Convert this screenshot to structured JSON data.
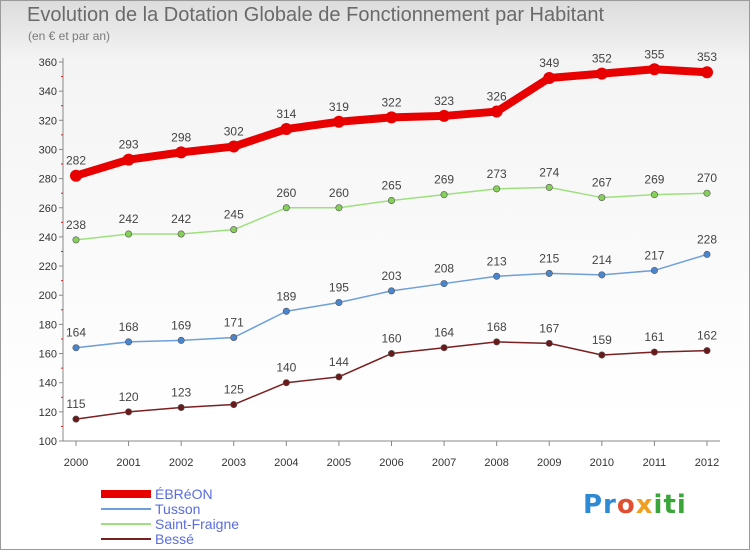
{
  "header": {
    "title": "Evolution de la Dotation Globale de Fonctionnement par Habitant",
    "subtitle": "(en € et par an)"
  },
  "logo": {
    "text": "Proxiti",
    "parts": [
      "Pr",
      "o",
      "x",
      "iti"
    ]
  },
  "chart_data": {
    "type": "line",
    "title": "Evolution de la Dotation Globale de Fonctionnement par Habitant",
    "subtitle": "(en € et par an)",
    "xlabel": "",
    "ylabel": "",
    "ylim": [
      100,
      360
    ],
    "yticks": [
      100,
      120,
      140,
      160,
      180,
      200,
      220,
      240,
      260,
      280,
      300,
      320,
      340,
      360
    ],
    "x": [
      "2000",
      "2001",
      "2002",
      "2003",
      "2004",
      "2005",
      "2006",
      "2007",
      "2008",
      "2009",
      "2010",
      "2011",
      "2012"
    ],
    "grid": false,
    "legend_position": "bottom-left",
    "series": [
      {
        "name": "ÉBRéON",
        "color": "#e80000",
        "marker": "#e80000",
        "values": [
          282,
          293,
          298,
          302,
          314,
          319,
          322,
          323,
          326,
          349,
          352,
          355,
          353
        ]
      },
      {
        "name": "Tusson",
        "color": "#6f9fd8",
        "marker": "#4a86d0",
        "values": [
          164,
          168,
          169,
          171,
          189,
          195,
          203,
          208,
          213,
          215,
          214,
          217,
          228
        ]
      },
      {
        "name": "Saint-Fraigne",
        "color": "#9ee07e",
        "marker": "#86d05a",
        "values": [
          238,
          242,
          242,
          245,
          260,
          260,
          265,
          269,
          273,
          274,
          267,
          269,
          270
        ]
      },
      {
        "name": "Bessé",
        "color": "#7a2020",
        "marker": "#6a1a1a",
        "values": [
          115,
          120,
          123,
          125,
          140,
          144,
          160,
          164,
          168,
          167,
          159,
          161,
          162
        ]
      }
    ]
  }
}
